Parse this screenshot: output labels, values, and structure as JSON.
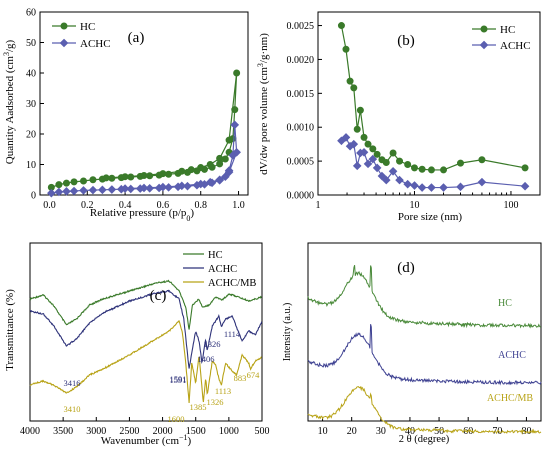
{
  "colors": {
    "hc": "#3a7a2a",
    "achc": "#5b5fb0",
    "achcmb": "#c2a81c",
    "xrd_hc": "#4a8a3a",
    "xrd_achc": "#3f4292",
    "xrd_achcmb": "#b8a317",
    "axis": "#000000"
  },
  "chart_data": [
    {
      "type": "line",
      "panel_label": "(a)",
      "xlabel": "Relative pressure (p/p0)",
      "ylabel": "Quantity Aadsorbed (cm3/g)",
      "xlim": [
        -0.05,
        1.05
      ],
      "ylim": [
        0,
        60
      ],
      "xticks": [
        "0.0",
        "0.2",
        "0.4",
        "0.6",
        "0.8",
        "1.0"
      ],
      "yticks": [
        "0",
        "10",
        "20",
        "30",
        "40",
        "50",
        "60"
      ],
      "legend": "top-left",
      "series": [
        {
          "name": "HC",
          "color": "#3a7a2a",
          "marker": "circle",
          "x": [
            0.01,
            0.05,
            0.09,
            0.13,
            0.18,
            0.23,
            0.28,
            0.33,
            0.38,
            0.43,
            0.48,
            0.53,
            0.58,
            0.63,
            0.68,
            0.73,
            0.78,
            0.82,
            0.86,
            0.9,
            0.93,
            0.95,
            0.97,
            0.98,
            0.99,
            0.95,
            0.9,
            0.85,
            0.8,
            0.75,
            0.7,
            0.6,
            0.5,
            0.4,
            0.3
          ],
          "y": [
            2.5,
            3.4,
            3.9,
            4.3,
            4.6,
            5.0,
            5.2,
            5.5,
            5.7,
            5.9,
            6.1,
            6.3,
            6.5,
            6.8,
            7.1,
            7.4,
            7.9,
            8.4,
            9.1,
            10.2,
            11.8,
            14,
            18.5,
            28,
            40,
            18,
            12,
            10,
            9,
            8.3,
            7.8,
            7.0,
            6.4,
            6.0,
            5.6
          ]
        },
        {
          "name": "ACHC",
          "color": "#5b5fb0",
          "marker": "diamond",
          "x": [
            0.01,
            0.05,
            0.09,
            0.13,
            0.18,
            0.23,
            0.28,
            0.33,
            0.38,
            0.43,
            0.48,
            0.53,
            0.58,
            0.63,
            0.68,
            0.73,
            0.78,
            0.82,
            0.86,
            0.9,
            0.93,
            0.95,
            0.97,
            0.98,
            0.99,
            0.95,
            0.9,
            0.85,
            0.8,
            0.7,
            0.6,
            0.5,
            0.4
          ],
          "y": [
            0.6,
            1.0,
            1.2,
            1.3,
            1.5,
            1.6,
            1.7,
            1.8,
            1.9,
            2.0,
            2.1,
            2.2,
            2.3,
            2.5,
            2.7,
            2.9,
            3.2,
            3.5,
            4.0,
            4.8,
            6.0,
            8.0,
            13,
            23,
            14,
            7.5,
            5,
            4.2,
            3.6,
            3.0,
            2.6,
            2.3,
            2.1
          ]
        }
      ]
    },
    {
      "type": "line",
      "panel_label": "(b)",
      "xlabel": "Pore size (nm)",
      "ylabel": "dV/dw pore volume (cm3/g·nm)",
      "xscale": "log",
      "xlim": [
        1,
        200
      ],
      "ylim": [
        0,
        0.0027
      ],
      "xticks": [
        "1",
        "10",
        "100"
      ],
      "yticks": [
        "0.0000",
        "0.0005",
        "0.0010",
        "0.0015",
        "0.0020",
        "0.0025"
      ],
      "legend": "top-right",
      "series": [
        {
          "name": "HC",
          "color": "#3a7a2a",
          "marker": "circle",
          "x": [
            1.75,
            1.95,
            2.15,
            2.35,
            2.55,
            2.75,
            3.0,
            3.3,
            3.7,
            4.1,
            4.6,
            5.1,
            6,
            7,
            8.5,
            10,
            12,
            15,
            20,
            30,
            50,
            140
          ],
          "y": [
            0.0025,
            0.00215,
            0.00168,
            0.00158,
            0.00097,
            0.00125,
            0.00085,
            0.00075,
            0.00068,
            0.0006,
            0.00052,
            0.00048,
            0.00062,
            0.0005,
            0.00045,
            0.0004,
            0.00038,
            0.00037,
            0.00037,
            0.00047,
            0.00052,
            0.0004
          ]
        },
        {
          "name": "ACHC",
          "color": "#5b5fb0",
          "marker": "diamond",
          "x": [
            1.75,
            1.95,
            2.15,
            2.35,
            2.55,
            2.75,
            3.0,
            3.3,
            3.7,
            4.1,
            4.6,
            5.1,
            6,
            7,
            8.5,
            10,
            12,
            15,
            20,
            30,
            50,
            140
          ],
          "y": [
            0.0008,
            0.00085,
            0.00072,
            0.00075,
            0.00043,
            0.00062,
            0.00063,
            0.00046,
            0.00053,
            0.0004,
            0.00028,
            0.00022,
            0.00035,
            0.00022,
            0.00016,
            0.00014,
            0.00011,
            0.00011,
            0.00011,
            0.00012,
            0.00019,
            0.00013
          ]
        }
      ]
    },
    {
      "type": "line",
      "panel_label": "(c)",
      "xlabel": "Wavenumber (cm-1)",
      "ylabel": "Transmittance (%)",
      "xlim": [
        4000,
        500
      ],
      "xticks": [
        "4000",
        "3500",
        "3000",
        "2500",
        "2000",
        "1500",
        "1000",
        "500"
      ],
      "legend": "top-right",
      "series": [
        {
          "name": "HC",
          "color": "#3a7a2a"
        },
        {
          "name": "ACHC",
          "color": "#2f337a"
        },
        {
          "name": "ACHC/MB",
          "color": "#b8a317"
        }
      ],
      "annotations": [
        {
          "text": "3416",
          "x": 3416,
          "series": "ACHC"
        },
        {
          "text": "1591",
          "x": 1591,
          "series": "ACHC"
        },
        {
          "text": "1591",
          "x": 1591,
          "series": "ACHC"
        },
        {
          "text": "1406",
          "x": 1406,
          "series": "ACHC"
        },
        {
          "text": "1326",
          "x": 1326,
          "series": "ACHC"
        },
        {
          "text": "1114",
          "x": 1114,
          "series": "ACHC"
        },
        {
          "text": "3410",
          "x": 3410,
          "series": "ACHC/MB"
        },
        {
          "text": "1600",
          "x": 1600,
          "series": "ACHC/MB"
        },
        {
          "text": "1385",
          "x": 1385,
          "series": "ACHC/MB"
        },
        {
          "text": "1326",
          "x": 1326,
          "series": "ACHC/MB"
        },
        {
          "text": "1113",
          "x": 1113,
          "series": "ACHC/MB"
        },
        {
          "text": "883",
          "x": 883,
          "series": "ACHC/MB"
        },
        {
          "text": "674",
          "x": 674,
          "series": "ACHC/MB"
        }
      ]
    },
    {
      "type": "line",
      "panel_label": "(d)",
      "xlabel": "2 θ (degree)",
      "ylabel": "Intensity (a.u.)",
      "xlim": [
        5,
        85
      ],
      "xticks": [
        "10",
        "20",
        "30",
        "40",
        "50",
        "60",
        "70",
        "80"
      ],
      "series": [
        {
          "name": "HC",
          "color": "#4a8a3a"
        },
        {
          "name": "ACHC",
          "color": "#3f4292"
        },
        {
          "name": "ACHC/MB",
          "color": "#b8a317"
        }
      ]
    }
  ]
}
